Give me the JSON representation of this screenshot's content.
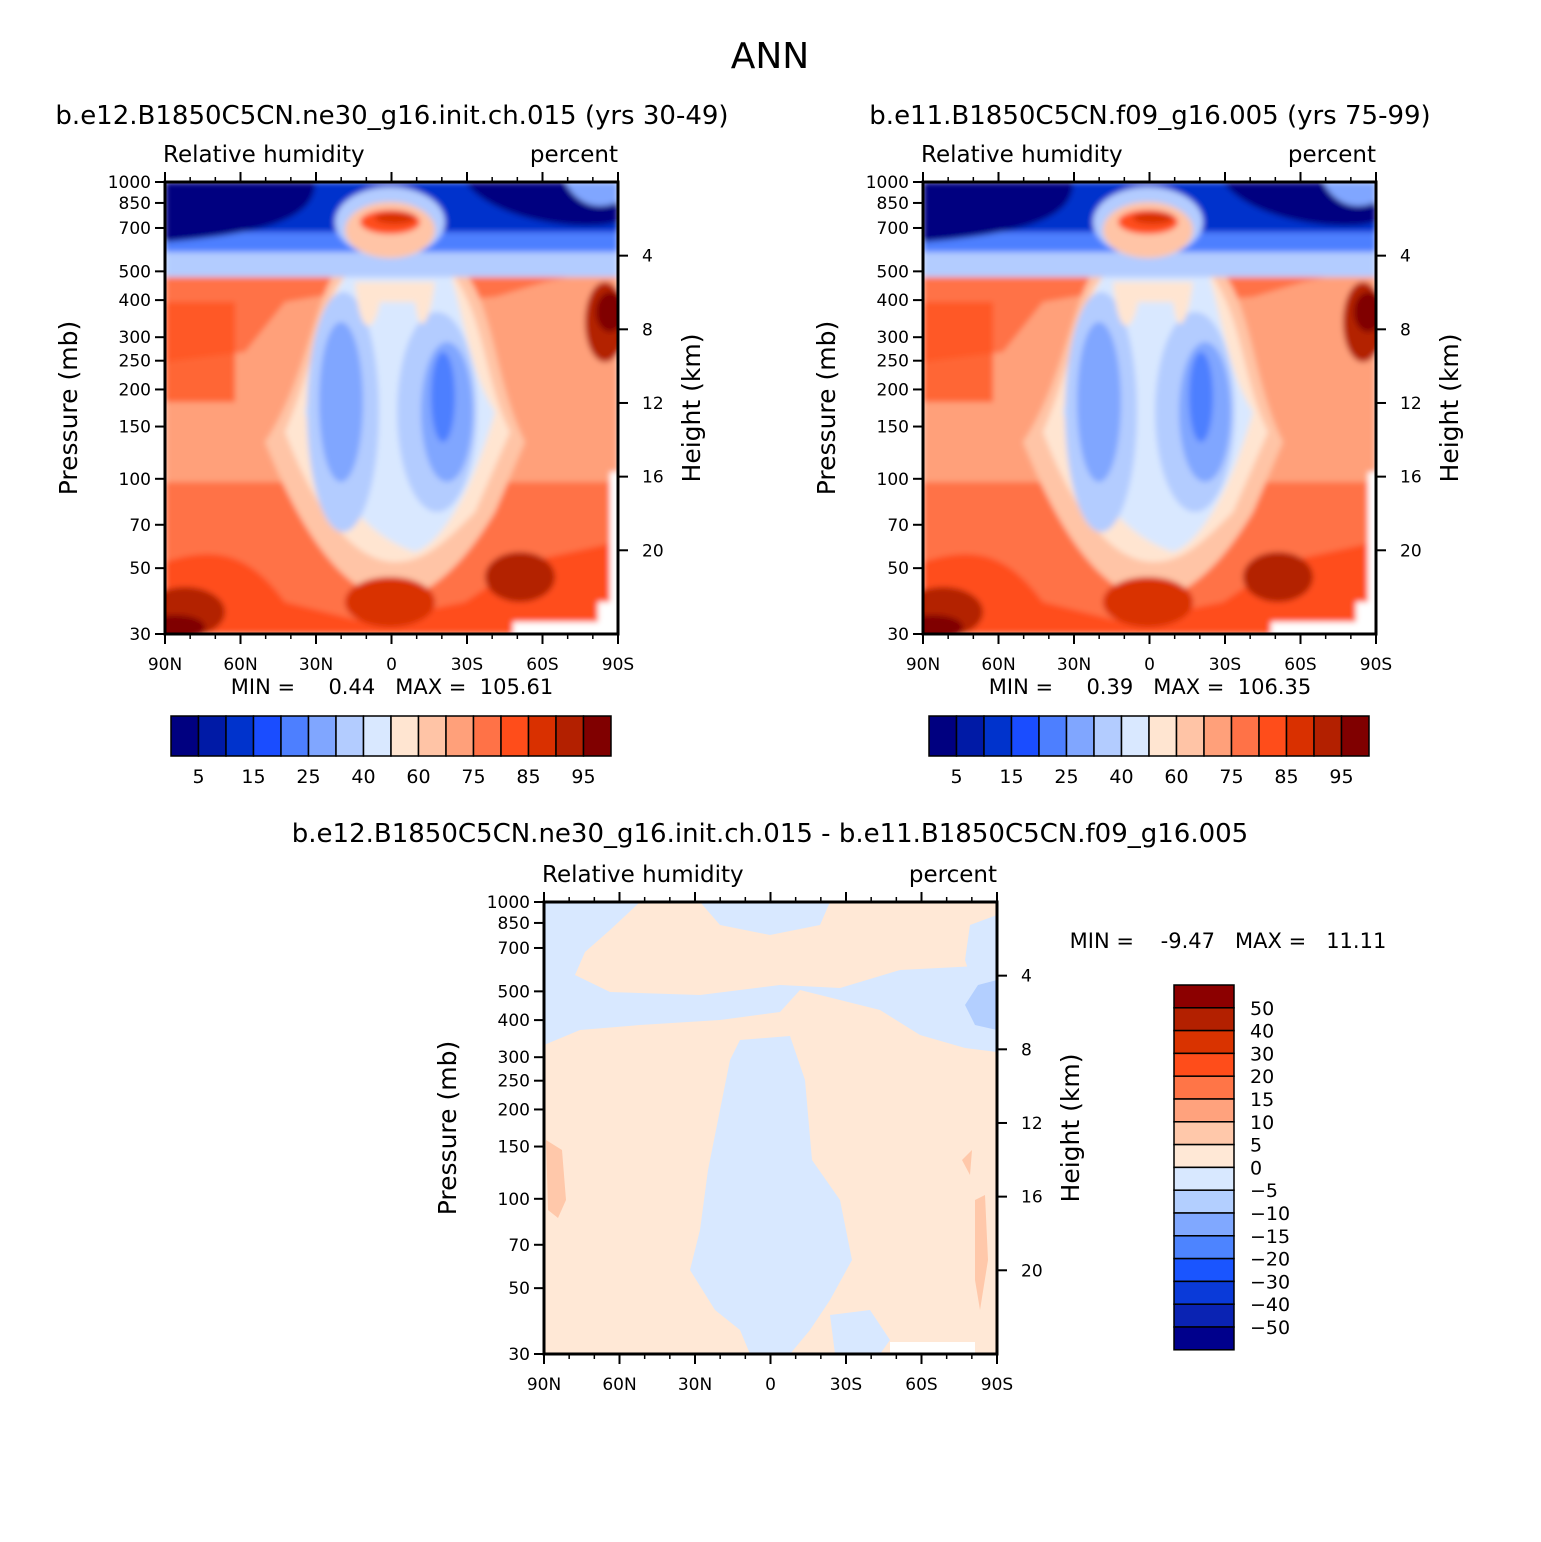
{
  "figure": {
    "title": "ANN"
  },
  "colors": {
    "abs_palette": [
      "#000080",
      "#001aa6",
      "#0033cc",
      "#1a4dff",
      "#4d7fff",
      "#80a6ff",
      "#b3ccff",
      "#d9e8ff",
      "#ffe5d1",
      "#ffc4a6",
      "#ffa07a",
      "#ff7247",
      "#ff4d1a",
      "#d93000",
      "#b32000",
      "#800000"
    ],
    "diff_palette": [
      "#00008c",
      "#0a23b3",
      "#0a3ad9",
      "#1a55ff",
      "#4d84ff",
      "#80a8ff",
      "#b3cfff",
      "#d8e8ff",
      "#ffe8d6",
      "#ffc8aa",
      "#ffa27d",
      "#ff7547",
      "#ff4d1a",
      "#d93300",
      "#b32000",
      "#8c0000"
    ]
  },
  "panels": [
    {
      "title": "b.e12.B1850C5CN.ne30_g16.init.ch.015 (yrs 30-49)",
      "left_label": "Relative humidity",
      "right_label": "percent",
      "min_text": "MIN =     0.44   MAX =  105.61",
      "colorbar_labels": [
        "5",
        "15",
        "25",
        "40",
        "60",
        "75",
        "85",
        "95"
      ]
    },
    {
      "title": "b.e11.B1850C5CN.f09_g16.005 (yrs 75-99)",
      "left_label": "Relative humidity",
      "right_label": "percent",
      "min_text": "MIN =     0.39   MAX =  106.35",
      "colorbar_labels": [
        "5",
        "15",
        "25",
        "40",
        "60",
        "75",
        "85",
        "95"
      ]
    },
    {
      "title": "b.e12.B1850C5CN.ne30_g16.init.ch.015 - b.e11.B1850C5CN.f09_g16.005",
      "left_label": "Relative humidity",
      "right_label": "percent",
      "min_text": "MIN =    -9.47   MAX =   11.11",
      "colorbar_labels": [
        "50",
        "40",
        "30",
        "20",
        "15",
        "10",
        "5",
        "0",
        "-5",
        "-10",
        "-15",
        "-20",
        "-30",
        "-40",
        "-50"
      ]
    }
  ],
  "axes": {
    "ylabel": "Pressure (mb)",
    "y2label": "Height (km)",
    "x_ticks": [
      "90N",
      "60N",
      "30N",
      "0",
      "30S",
      "60S",
      "90S"
    ],
    "y_ticks": [
      "30",
      "50",
      "70",
      "100",
      "150",
      "200",
      "250",
      "300",
      "400",
      "500",
      "700",
      "850",
      "1000"
    ],
    "y2_ticks": [
      "20",
      "16",
      "12",
      "8",
      "4"
    ]
  },
  "chart_data": [
    {
      "type": "heatmap",
      "title": "b.e12.B1850C5CN.ne30_g16.init.ch.015 (yrs 30-49)",
      "xlabel": "",
      "ylabel": "Pressure (mb)",
      "y2label": "Height (km)",
      "xlim": [
        -90,
        90
      ],
      "ylim": [
        1000,
        30
      ],
      "y_scale": "log",
      "levels": [
        5,
        10,
        15,
        20,
        25,
        30,
        40,
        50,
        60,
        70,
        75,
        80,
        85,
        90,
        95
      ],
      "min": 0.44,
      "max": 105.61,
      "units": "percent"
    },
    {
      "type": "heatmap",
      "title": "b.e11.B1850C5CN.f09_g16.005 (yrs 75-99)",
      "xlabel": "",
      "ylabel": "Pressure (mb)",
      "y2label": "Height (km)",
      "xlim": [
        -90,
        90
      ],
      "ylim": [
        1000,
        30
      ],
      "y_scale": "log",
      "levels": [
        5,
        10,
        15,
        20,
        25,
        30,
        40,
        50,
        60,
        70,
        75,
        80,
        85,
        90,
        95
      ],
      "min": 0.39,
      "max": 106.35,
      "units": "percent"
    },
    {
      "type": "heatmap",
      "title": "b.e12.B1850C5CN.ne30_g16.init.ch.015 - b.e11.B1850C5CN.f09_g16.005",
      "xlabel": "",
      "ylabel": "Pressure (mb)",
      "y2label": "Height (km)",
      "xlim": [
        -90,
        90
      ],
      "ylim": [
        1000,
        30
      ],
      "y_scale": "log",
      "levels": [
        -50,
        -40,
        -30,
        -20,
        -15,
        -10,
        -5,
        0,
        5,
        10,
        15,
        20,
        30,
        40,
        50
      ],
      "min": -9.47,
      "max": 11.11,
      "units": "percent"
    }
  ]
}
